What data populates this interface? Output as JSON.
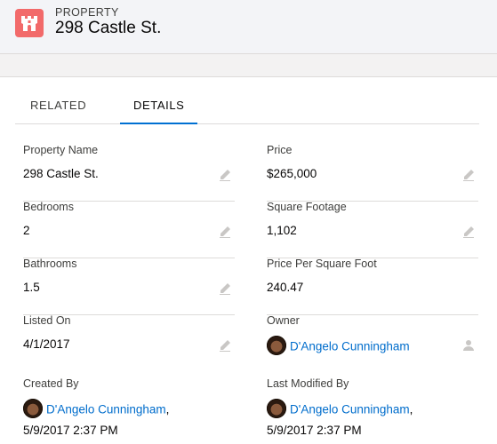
{
  "header": {
    "object_type": "PROPERTY",
    "record_name": "298 Castle St.",
    "icon": "castle-icon",
    "icon_color": "#f26a6a"
  },
  "tabs": [
    {
      "label": "RELATED",
      "active": false
    },
    {
      "label": "DETAILS",
      "active": true
    }
  ],
  "fields": {
    "property_name": {
      "label": "Property Name",
      "value": "298 Castle St."
    },
    "price": {
      "label": "Price",
      "value": "$265,000"
    },
    "bedrooms": {
      "label": "Bedrooms",
      "value": "2"
    },
    "square_footage": {
      "label": "Square Footage",
      "value": "1,102"
    },
    "bathrooms": {
      "label": "Bathrooms",
      "value": "1.5"
    },
    "price_per_sqft": {
      "label": "Price Per Square Foot",
      "value": "240.47"
    },
    "listed_on": {
      "label": "Listed On",
      "value": "4/1/2017"
    },
    "owner": {
      "label": "Owner",
      "value": "D'Angelo Cunningham"
    },
    "created_by": {
      "label": "Created By",
      "user": "D'Angelo Cunningham",
      "suffix": ",",
      "timestamp": "5/9/2017 2:37 PM"
    },
    "last_modified_by": {
      "label": "Last Modified By",
      "user": "D'Angelo Cunningham",
      "suffix": ",",
      "timestamp": "5/9/2017 2:37 PM"
    }
  },
  "colors": {
    "link": "#006dcc",
    "active_tab_underline": "#0070d2"
  }
}
